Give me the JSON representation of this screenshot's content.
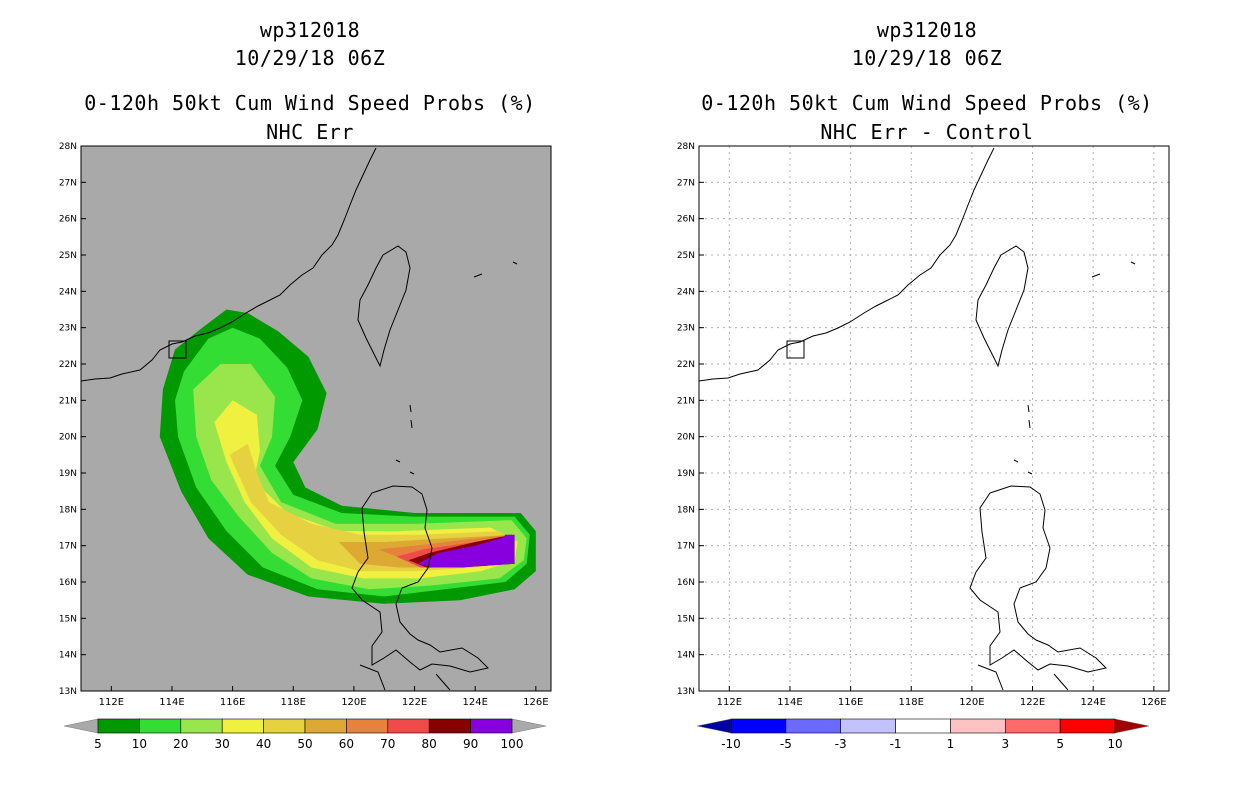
{
  "chart_data": [
    {
      "type": "map-contour",
      "storm_id": "wp312018",
      "datetime": "10/29/18 06Z",
      "title": "0-120h 50kt Cum Wind Speed Probs (%)",
      "subtitle": "NHC Err",
      "xlim": [
        111,
        126.5
      ],
      "ylim": [
        13,
        28
      ],
      "xticks": [
        "112E",
        "114E",
        "116E",
        "118E",
        "120E",
        "122E",
        "124E",
        "126E"
      ],
      "yticks": [
        "13N",
        "14N",
        "15N",
        "16N",
        "17N",
        "18N",
        "19N",
        "20N",
        "21N",
        "22N",
        "23N",
        "24N",
        "25N",
        "26N",
        "27N",
        "28N"
      ],
      "grid": false,
      "background": "#a9a9a9",
      "levels": [
        5,
        10,
        20,
        30,
        40,
        50,
        60,
        70,
        80,
        90,
        100
      ],
      "level_colors": [
        "#009900",
        "#33dd33",
        "#99e64c",
        "#f0f040",
        "#e6d240",
        "#dcaa33",
        "#e6823c",
        "#f04b4b",
        "#880000",
        "#8800dd"
      ],
      "shaded_peak": "100% near 124E-125.5E, 16.5N-17.3N",
      "legend_labels": [
        "5",
        "10",
        "20",
        "30",
        "40",
        "50",
        "60",
        "70",
        "80",
        "90",
        "100"
      ]
    },
    {
      "type": "map-contour",
      "storm_id": "wp312018",
      "datetime": "10/29/18 06Z",
      "title": "0-120h 50kt Cum Wind Speed Probs (%)",
      "subtitle": "NHC Err - Control",
      "xlim": [
        111,
        126.5
      ],
      "ylim": [
        13,
        28
      ],
      "xticks": [
        "112E",
        "114E",
        "116E",
        "118E",
        "120E",
        "122E",
        "124E",
        "126E"
      ],
      "yticks": [
        "13N",
        "14N",
        "15N",
        "16N",
        "17N",
        "18N",
        "19N",
        "20N",
        "21N",
        "22N",
        "23N",
        "24N",
        "25N",
        "26N",
        "27N",
        "28N"
      ],
      "grid": true,
      "background": "#ffffff",
      "levels": [
        -10,
        -5,
        -3,
        -1,
        1,
        3,
        5,
        10
      ],
      "level_colors": [
        "#0000a0",
        "#0000ff",
        "#6a6aff",
        "#c2c2ff",
        "#ffffff",
        "#ffc2c2",
        "#ff6a6a",
        "#ff0000",
        "#a00000"
      ],
      "legend_labels": [
        "-10",
        "-5",
        "-3",
        "-1",
        "1",
        "3",
        "5",
        "10"
      ]
    }
  ]
}
